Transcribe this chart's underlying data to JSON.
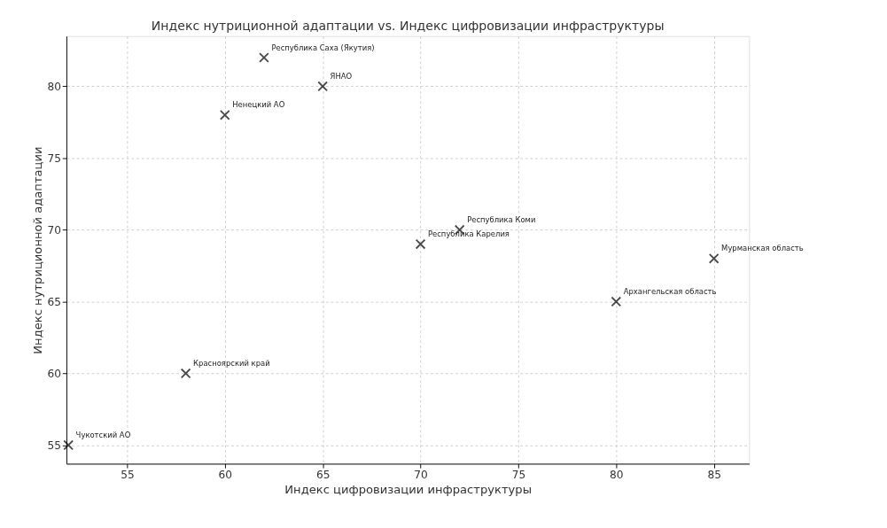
{
  "chart_data": {
    "type": "scatter",
    "title": "Индекс нутриционной адаптации vs. Индекс цифровизации инфраструктуры",
    "xlabel": "Индекс цифровизации инфраструктуры",
    "ylabel": "Индекс нутриционной адаптации",
    "x": [
      52,
      58,
      60,
      62,
      65,
      70,
      72,
      80,
      85
    ],
    "series": [
      {
        "color": "#000000",
        "values": [
          55,
          60,
          78,
          82,
          80,
          69,
          70,
          65,
          68
        ]
      }
    ],
    "annotations": [
      {
        "text": "Чукотский АО",
        "x": 52,
        "y": 55
      },
      {
        "text": "Красноярский край",
        "x": 58,
        "y": 60
      },
      {
        "text": "Ненецкий АО",
        "x": 60,
        "y": 78
      },
      {
        "text": "Республика Саха (Якутия)",
        "x": 62,
        "y": 82
      },
      {
        "text": "ЯНАО",
        "x": 65,
        "y": 80
      },
      {
        "text": "Республика Карелия",
        "x": 70,
        "y": 69
      },
      {
        "text": "Республика Коми",
        "x": 72,
        "y": 70
      },
      {
        "text": "Архангельская область",
        "x": 80,
        "y": 65
      },
      {
        "text": "Мурманская область",
        "x": 85,
        "y": 68
      }
    ],
    "xlim": [
      51.9,
      86.8
    ],
    "ylim": [
      53.7,
      83.5
    ],
    "xticks": [
      55,
      60,
      65,
      70,
      75,
      80,
      85
    ],
    "yticks": [
      55,
      60,
      65,
      70,
      75,
      80
    ],
    "grid": true,
    "marker": "cross"
  }
}
